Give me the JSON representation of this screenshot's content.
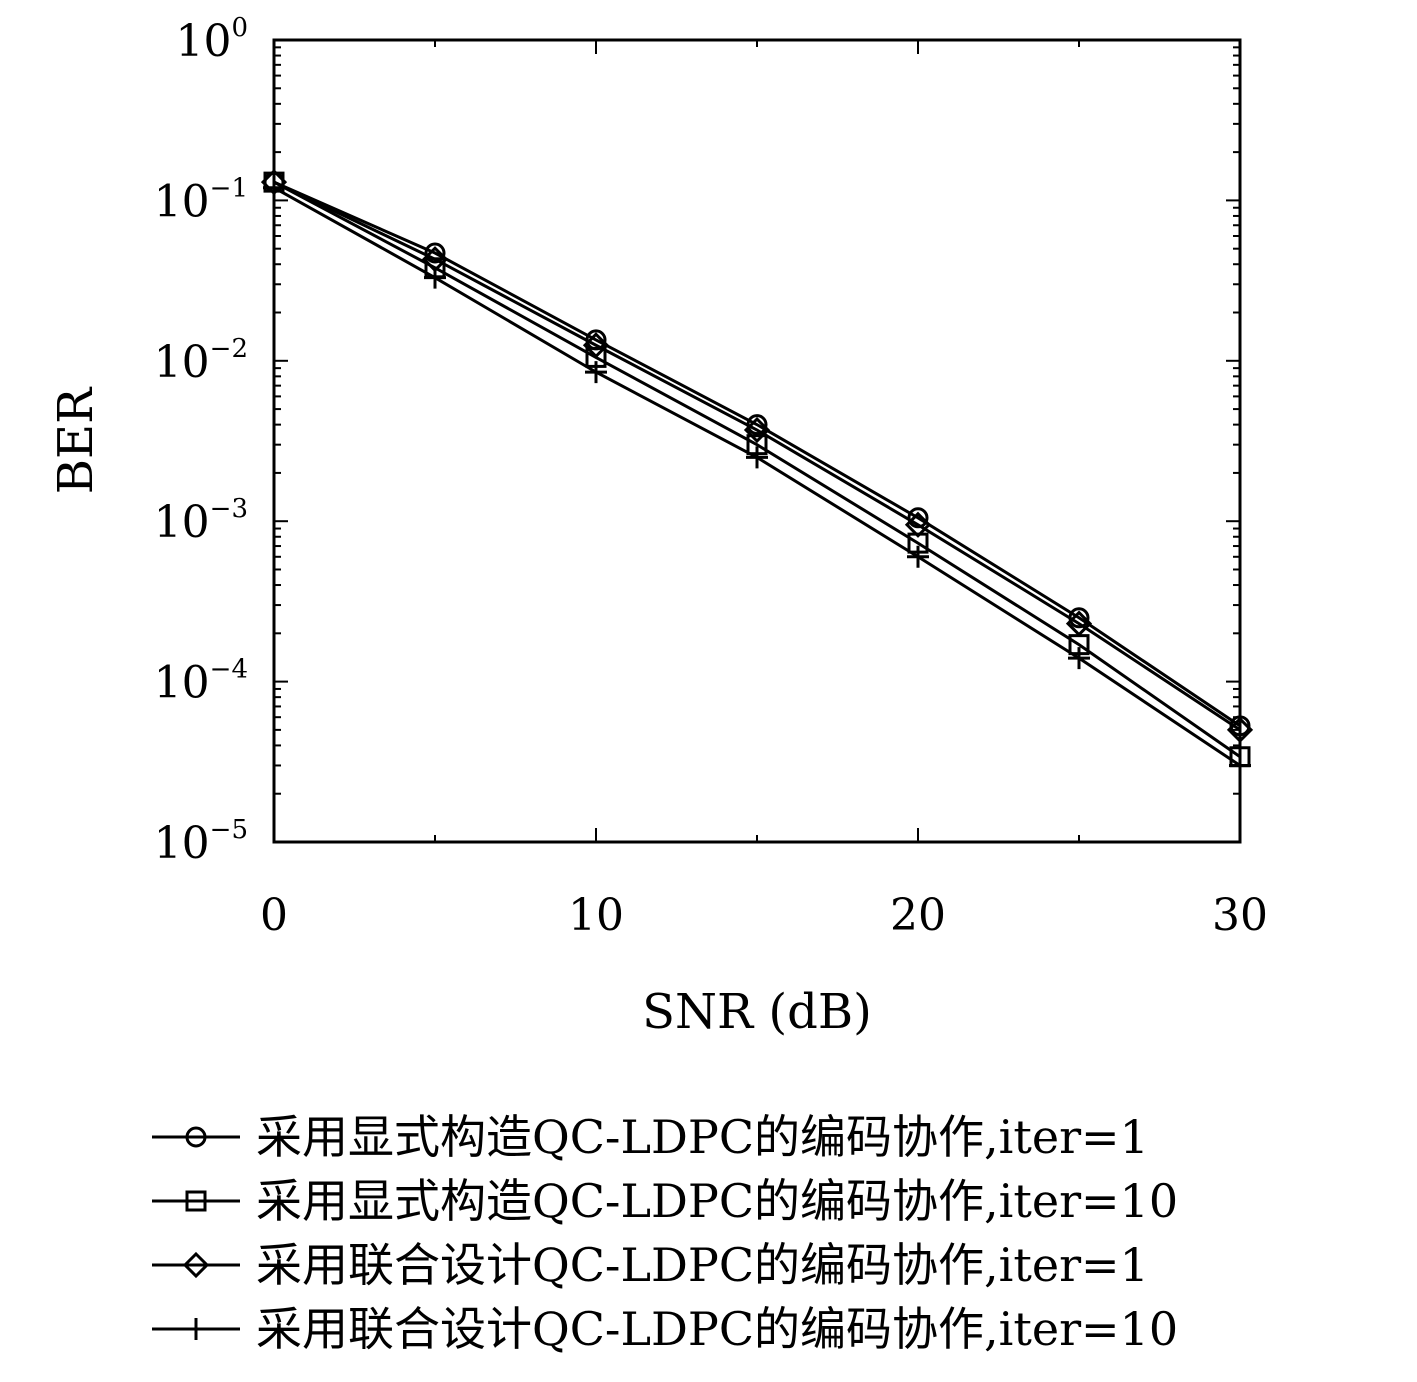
{
  "chart_data": {
    "type": "line",
    "xlabel": "SNR (dB)",
    "ylabel": "BER",
    "xlim": [
      0,
      30
    ],
    "ylim": [
      1e-05,
      1
    ],
    "yscale": "log",
    "grid": false,
    "legend_position": "bottom",
    "x_ticks": [
      "0",
      "10",
      "20",
      "30"
    ],
    "y_ticks": [
      {
        "base": "10",
        "exp": "0"
      },
      {
        "base": "10",
        "exp": "−1"
      },
      {
        "base": "10",
        "exp": "−2"
      },
      {
        "base": "10",
        "exp": "−3"
      },
      {
        "base": "10",
        "exp": "−4"
      },
      {
        "base": "10",
        "exp": "−5"
      }
    ],
    "x": [
      0,
      5,
      10,
      15,
      20,
      25,
      30
    ],
    "series": [
      {
        "name": "采用显式构造QC-LDPC的编码协作,iter=1",
        "marker": "circle",
        "values": [
          0.13,
          0.047,
          0.0135,
          0.004,
          0.00105,
          0.00025,
          5.3e-05
        ]
      },
      {
        "name": "采用显式构造QC-LDPC的编码协作,iter=10",
        "marker": "square",
        "values": [
          0.13,
          0.038,
          0.0105,
          0.003,
          0.00073,
          0.00017,
          3.4e-05
        ]
      },
      {
        "name": "采用联合设计QC-LDPC的编码协作,iter=1",
        "marker": "diamond",
        "values": [
          0.13,
          0.043,
          0.0125,
          0.0037,
          0.00095,
          0.00023,
          5e-05
        ]
      },
      {
        "name": "采用联合设计QC-LDPC的编码协作,iter=10",
        "marker": "plus",
        "values": [
          0.12,
          0.033,
          0.0085,
          0.0025,
          0.0006,
          0.00014,
          3e-05
        ]
      }
    ]
  }
}
